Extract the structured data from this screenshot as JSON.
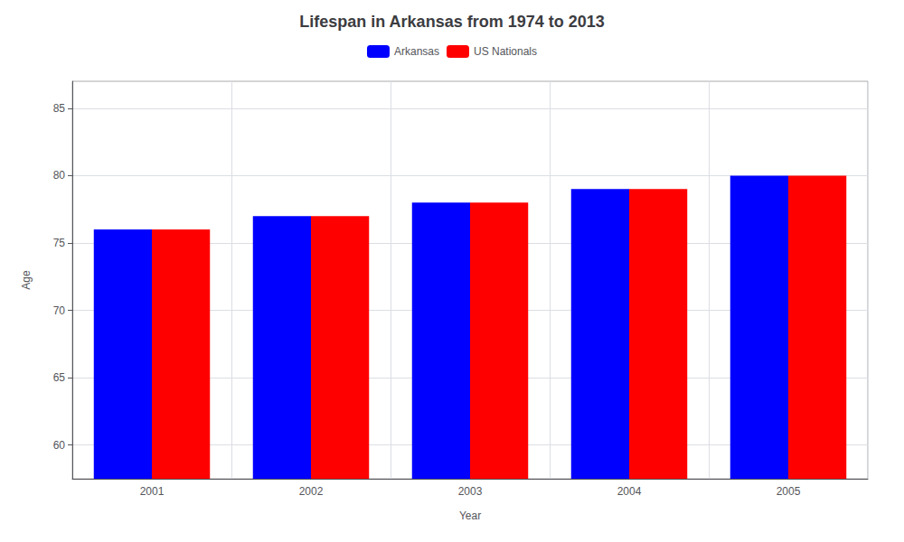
{
  "chart_data": {
    "type": "bar",
    "title": "Lifespan in Arkansas from 1974 to 2013",
    "xlabel": "Year",
    "ylabel": "Age",
    "categories": [
      2001,
      2002,
      2003,
      2004,
      2005
    ],
    "series": [
      {
        "name": "Arkansas",
        "color": "#0000ff",
        "values": [
          76,
          77,
          78,
          79,
          80
        ]
      },
      {
        "name": "US Nationals",
        "color": "#ff0000",
        "values": [
          76,
          77,
          78,
          79,
          80
        ]
      }
    ],
    "ylim": [
      57.5,
      87
    ],
    "yticks": [
      60,
      65,
      70,
      75,
      80,
      85
    ],
    "grid": true,
    "legend": "top"
  }
}
